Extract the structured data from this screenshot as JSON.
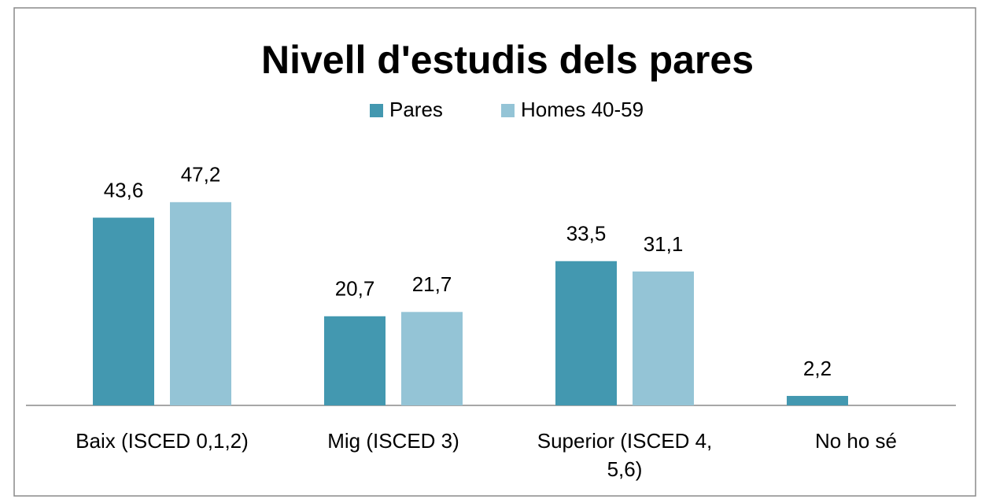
{
  "chart_data": {
    "type": "bar",
    "title": "Nivell d'estudis dels pares",
    "categories": [
      "Baix (ISCED 0,1,2)",
      "Mig (ISCED 3)",
      "Superior (ISCED 4, 5,6)",
      "No ho sé"
    ],
    "series": [
      {
        "name": "Pares",
        "color": "#4398b0",
        "values": [
          43.6,
          20.7,
          33.5,
          2.2
        ],
        "value_labels": [
          "43,6",
          "20,7",
          "33,5",
          "2,2"
        ]
      },
      {
        "name": "Homes 40-59",
        "color": "#94c4d6",
        "values": [
          47.2,
          21.7,
          31.1,
          null
        ],
        "value_labels": [
          "47,2",
          "21,7",
          "31,1",
          null
        ]
      }
    ],
    "legend": "top"
  }
}
